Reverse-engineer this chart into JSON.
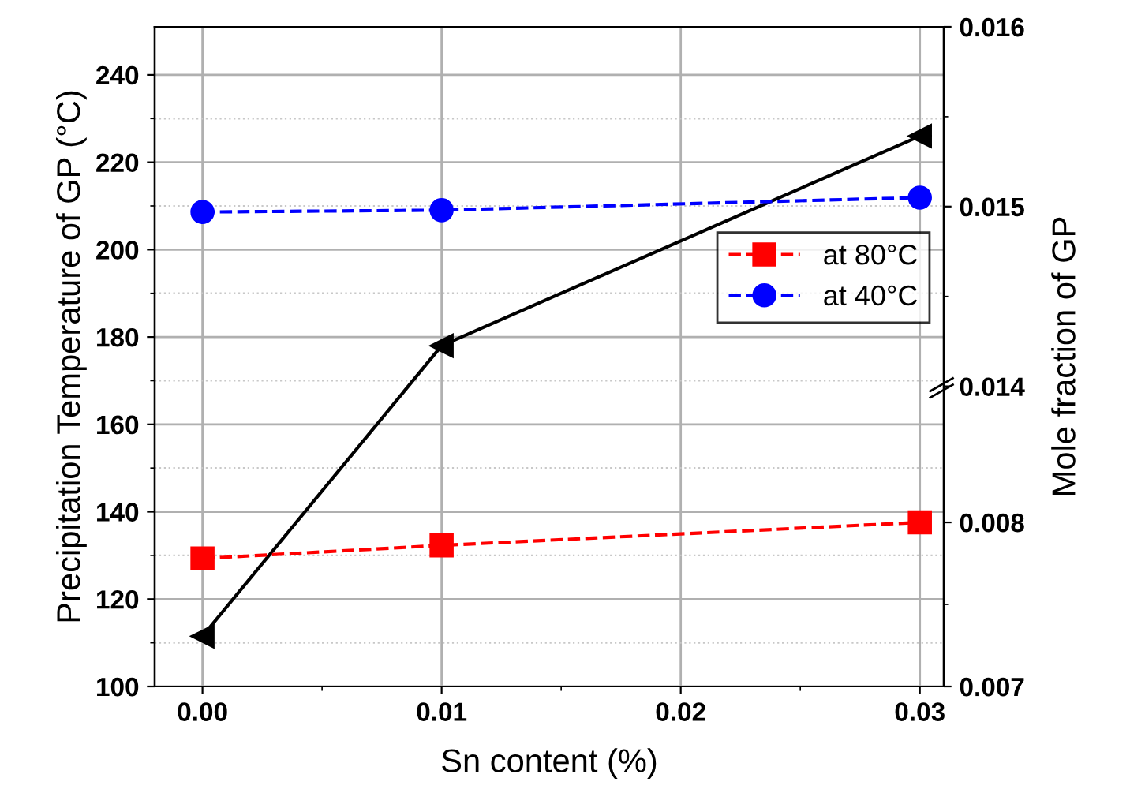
{
  "chart_data": {
    "type": "line",
    "xlabel": "Sn content (%)",
    "ylabel": "Precipitation Temperature of GP (°C)",
    "y2label": "Mole fraction of GP",
    "x": [
      0.0,
      0.01,
      0.03
    ],
    "xlim": [
      -0.002,
      0.031
    ],
    "xticks": [
      {
        "value": 0.0,
        "label": "0.00"
      },
      {
        "value": 0.005,
        "label": null
      },
      {
        "value": 0.01,
        "label": "0.01"
      },
      {
        "value": 0.015,
        "label": null
      },
      {
        "value": 0.02,
        "label": "0.02"
      },
      {
        "value": 0.025,
        "label": null
      },
      {
        "value": 0.03,
        "label": "0.03"
      }
    ],
    "ylim": [
      100,
      251
    ],
    "yticks": [
      100,
      {
        "value": 110,
        "label": null
      },
      120,
      {
        "value": 130,
        "label": null
      },
      140,
      {
        "value": 150,
        "label": null
      },
      160,
      {
        "value": 170,
        "label": null
      },
      180,
      {
        "value": 190,
        "label": null
      },
      200,
      {
        "value": 210,
        "label": null
      },
      220,
      {
        "value": 230,
        "label": null
      },
      240
    ],
    "y2lim": [
      0.007,
      0.01102
    ],
    "y2ticks": [
      0.007,
      {
        "value": 0.0075,
        "label": null
      },
      0.008
    ],
    "y3lim": [
      0.01233,
      0.016
    ],
    "y3ticks": [
      0.014,
      {
        "value": 0.0145,
        "label": null
      },
      0.015,
      {
        "value": 0.0155,
        "label": null
      },
      0.016
    ],
    "series": [
      {
        "color": "#000000",
        "values": [
          111.5,
          178,
          226
        ],
        "marker": "triangle",
        "line_style": "solid"
      },
      {
        "name": "at 80°C",
        "color": "#ff0000",
        "values": [
          0.00778,
          0.00786,
          0.008
        ],
        "axis": "y2",
        "marker": "square",
        "line_style": "dashed"
      },
      {
        "name": "at 40°C",
        "color": "#0000ff",
        "values": [
          0.01497,
          0.01498,
          0.01505
        ],
        "axis": "y3",
        "marker": "circle",
        "line_style": "dashed"
      }
    ],
    "grid": true,
    "legend": "right"
  }
}
